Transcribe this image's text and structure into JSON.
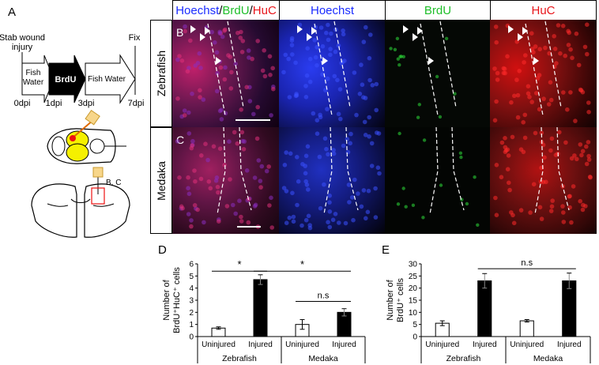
{
  "panels": {
    "A": {
      "letter": "A",
      "stab_label_1": "Stab wound",
      "stab_label_2": "injury",
      "fix_label": "Fix",
      "arrow1_line1": "Fish",
      "arrow1_line2": "Water",
      "arrow2": "BrdU",
      "arrow3": "Fish Water",
      "timepoints": [
        "0dpi",
        "1dpi",
        "3dpi",
        "7dpi"
      ],
      "section_label": "B, C"
    },
    "micrographs": {
      "headers": {
        "merge_parts": [
          "Hoechst",
          "/",
          "BrdU",
          "/",
          "HuC"
        ],
        "col2": "Hoechst",
        "col3": "BrdU",
        "col4": "HuC"
      },
      "rows": [
        {
          "letter": "B",
          "label": "Zebrafish"
        },
        {
          "letter": "C",
          "label": "Medaka"
        }
      ],
      "colors": {
        "hoechst": "#1a2cff",
        "brdu": "#1fbf2a",
        "huc": "#e8151a"
      }
    },
    "D": {
      "letter": "D"
    },
    "E": {
      "letter": "E"
    }
  },
  "chart_data": [
    {
      "type": "bar",
      "panel": "D",
      "ylabel_line1": "Number of",
      "ylabel_line2": "BrdU⁺HuC⁺ cells",
      "ylim": [
        0,
        6
      ],
      "yticks": [
        0,
        1,
        2,
        3,
        4,
        5,
        6
      ],
      "categories": [
        "Uninjured",
        "Injured",
        "Uninjured",
        "Injured"
      ],
      "groups": [
        "Zebrafish",
        "Medaka"
      ],
      "values": [
        0.7,
        4.7,
        1.0,
        2.0
      ],
      "errors": [
        0.1,
        0.4,
        0.4,
        0.3
      ],
      "fills": [
        "#ffffff",
        "#000000",
        "#ffffff",
        "#000000"
      ],
      "significance": [
        {
          "from": 0,
          "to": 1,
          "label": "*",
          "level": 5.4
        },
        {
          "from": 1,
          "to": 3,
          "label": "*",
          "level": 5.4
        },
        {
          "from": 2,
          "to": 3,
          "label": "n.s",
          "level": 2.9
        }
      ]
    },
    {
      "type": "bar",
      "panel": "E",
      "ylabel_line1": "Number of",
      "ylabel_line2": "BrdU⁺ cells",
      "ylim": [
        0,
        30
      ],
      "yticks": [
        0,
        5,
        10,
        15,
        20,
        25,
        30
      ],
      "categories": [
        "Uninjured",
        "Injured",
        "Uninjured",
        "Injured"
      ],
      "groups": [
        "Zebrafish",
        "Medaka"
      ],
      "values": [
        5.5,
        23.0,
        6.5,
        23.0
      ],
      "errors": [
        1.0,
        3.0,
        0.5,
        3.2
      ],
      "fills": [
        "#ffffff",
        "#000000",
        "#ffffff",
        "#000000"
      ],
      "significance": [
        {
          "from": 1,
          "to": 3,
          "label": "n.s",
          "level": 28.0
        }
      ]
    }
  ]
}
